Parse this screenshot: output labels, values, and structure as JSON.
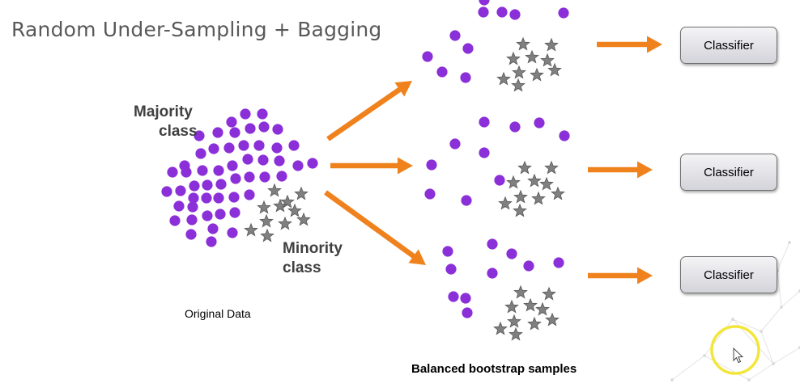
{
  "title": "Random Under-Sampling + Bagging",
  "labels": {
    "majority_line1": "Majority",
    "majority_line2": "class",
    "minority_line1": "Minority",
    "minority_line2": "class",
    "original_data": "Original Data",
    "balanced_samples": "Balanced bootstrap samples"
  },
  "classifiers": [
    "Classifier",
    "Classifier",
    "Classifier"
  ],
  "colors": {
    "majority": "#8b2fd9",
    "minority": "#808080",
    "arrow": "#f0821e",
    "title": "#595959"
  },
  "icons": [
    "cursor-icon",
    "highlight-circle-icon"
  ]
}
